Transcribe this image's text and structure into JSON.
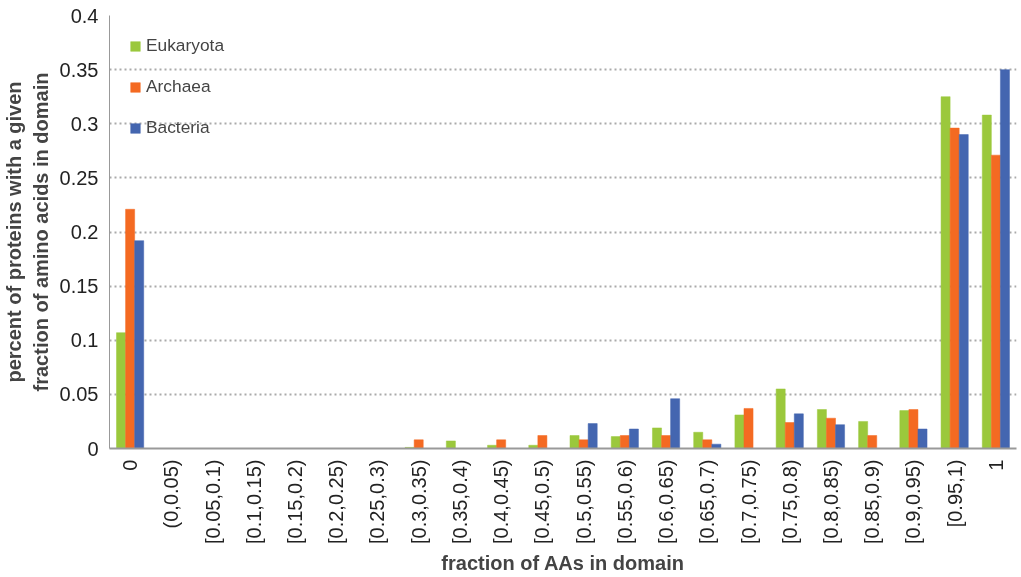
{
  "chart_data": {
    "type": "bar",
    "xlabel": "fraction of AAs in domain",
    "ylabel": "percent of proteins with a given fraction of amino acids in domain",
    "categories": [
      "0",
      "(0,0.05)",
      "[0.05,0.1)",
      "[0.1,0.15)",
      "[0.15,0.2)",
      "[0.2,0.25)",
      "[0.25,0.3)",
      "[0.3,0.35)",
      "[0.35,0.4)",
      "[0.4,0.45)",
      "[0.45,0.5)",
      "[0.5,0.55)",
      "[0.55,0.6)",
      "[0.6,0.65)",
      "[0.65,0.7)",
      "[0.7,0.75)",
      "[0.75,0.8)",
      "[0.8,0.85)",
      "[0.85,0.9)",
      "[0.9,0.95)",
      "[0.95,1)",
      "1"
    ],
    "series": [
      {
        "name": "Eukaryota",
        "color": "#9bc83c",
        "values": [
          0.107,
          0,
          0,
          0,
          0,
          0,
          0,
          0.001,
          0.007,
          0.003,
          0.003,
          0.012,
          0.011,
          0.019,
          0.015,
          0.031,
          0.055,
          0.036,
          0.025,
          0.035,
          0.325,
          0.308
        ]
      },
      {
        "name": "Archaea",
        "color": "#f46a22",
        "values": [
          0.221,
          0,
          0,
          0,
          0,
          0,
          0,
          0.008,
          0,
          0.008,
          0.012,
          0.008,
          0.012,
          0.012,
          0.008,
          0.037,
          0.024,
          0.028,
          0.012,
          0.036,
          0.296,
          0.271
        ]
      },
      {
        "name": "Bacteria",
        "color": "#4466b0",
        "values": [
          0.192,
          0,
          0,
          0,
          0,
          0,
          0,
          0,
          0,
          0,
          0,
          0.023,
          0.018,
          0.046,
          0.004,
          0,
          0.032,
          0.022,
          0,
          0.018,
          0.29,
          0.35
        ]
      }
    ],
    "ylim": [
      0,
      0.4
    ],
    "yticks": [
      0,
      {
        "value": 0.05,
        "label": "0.05"
      },
      {
        "value": 0.1,
        "label": "0.1"
      },
      {
        "value": 0.15,
        "label": "0.15"
      },
      {
        "value": 0.2,
        "label": "0.2"
      },
      {
        "value": 0.25,
        "label": "0.25"
      },
      {
        "value": 0.3,
        "label": "0.3"
      },
      {
        "value": 0.35,
        "label": "0.35"
      },
      {
        "value": 0.4,
        "label": "0.4"
      }
    ],
    "grid": "y",
    "legend": "top left"
  }
}
